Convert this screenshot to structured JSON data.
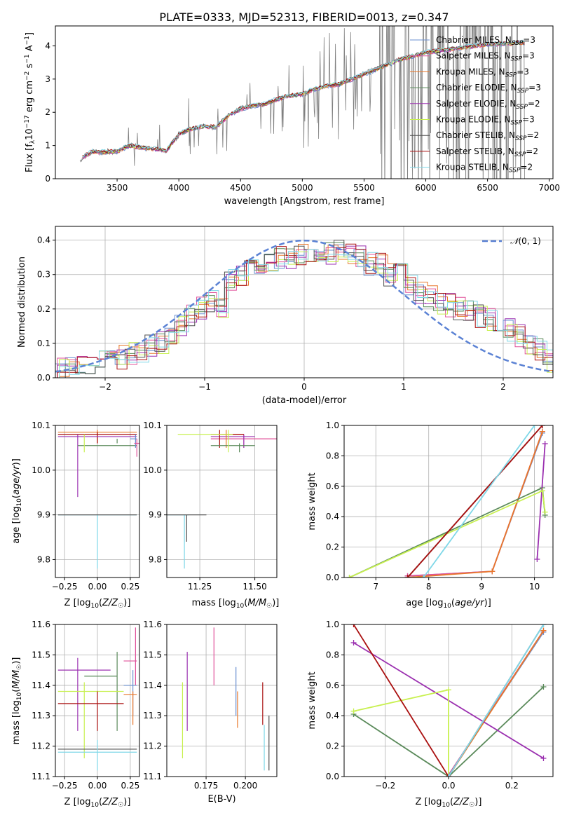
{
  "title": "PLATE=0333, MJD=52313, FIBERID=0013, z=0.347",
  "colors": {
    "Chabrier MILES": "#6a8fd0",
    "Salpeter MILES": "#e0529a",
    "Kroupa MILES": "#e8772a",
    "Chabrier ELODIE": "#5a8a5a",
    "Salpeter ELODIE": "#9b30b0",
    "Kroupa ELODIE": "#c8f050",
    "Chabrier STELIB": "#505050",
    "Salpeter STELIB": "#aa1010",
    "Kroupa STELIB": "#80d8e8",
    "observed": "#808080",
    "normal": "#5b82d4"
  },
  "legend_top": [
    {
      "name": "Chabrier MILES",
      "pre": "Chabrier MILES, N",
      "sub": "SSP",
      "post": "=3"
    },
    {
      "name": "Salpeter MILES",
      "pre": "Salpeter MILES, N",
      "sub": "SSP",
      "post": "=3"
    },
    {
      "name": "Kroupa MILES",
      "pre": "Kroupa MILES, N",
      "sub": "SSP",
      "post": "=3"
    },
    {
      "name": "Chabrier ELODIE",
      "pre": "Chabrier ELODIE, N",
      "sub": "SSP",
      "post": "=3"
    },
    {
      "name": "Salpeter ELODIE",
      "pre": "Salpeter ELODIE, N",
      "sub": "SSP",
      "post": "=2"
    },
    {
      "name": "Kroupa ELODIE",
      "pre": "Kroupa ELODIE, N",
      "sub": "SSP",
      "post": "=3"
    },
    {
      "name": "Chabrier STELIB",
      "pre": "Chabrier STELIB, N",
      "sub": "SSP",
      "post": "=2"
    },
    {
      "name": "Salpeter STELIB",
      "pre": "Salpeter STELIB, N",
      "sub": "SSP",
      "post": "=2"
    },
    {
      "name": "Kroupa STELIB",
      "pre": "Kroupa STELIB, N",
      "sub": "SSP",
      "post": "=2"
    }
  ],
  "chart_data": [
    {
      "id": "spectrum",
      "type": "line",
      "xlabel": "wavelength [Angstrom, rest frame]",
      "ylabel": "Flux [f_λ 10^-17 erg cm^-2 s^-1 A^-1]",
      "xlim": [
        3000,
        7030
      ],
      "ylim": [
        0,
        4.6
      ],
      "xticks": [
        3500,
        4000,
        4500,
        5000,
        5500,
        6000,
        6500,
        7000
      ],
      "yticks": [
        0,
        1,
        2,
        3,
        4
      ],
      "grid": false,
      "legend_position": "top-right",
      "x": [
        3200,
        3300,
        3400,
        3500,
        3600,
        3700,
        3800,
        3900,
        4000,
        4100,
        4200,
        4300,
        4400,
        4500,
        4600,
        4700,
        4800,
        4900,
        5000,
        5100,
        5200,
        5300,
        5400,
        5500,
        5600,
        5700,
        5800,
        5900,
        6000,
        6100,
        6200,
        6300,
        6400,
        6500,
        6600,
        6700,
        6800
      ],
      "series": [
        {
          "name": "observed",
          "values": [
            0.55,
            0.8,
            0.78,
            0.8,
            1.05,
            0.95,
            0.9,
            0.85,
            1.3,
            1.5,
            1.6,
            1.5,
            1.9,
            2.15,
            2.2,
            2.25,
            2.4,
            2.5,
            2.5,
            2.7,
            2.8,
            2.85,
            3.0,
            3.2,
            3.3,
            3.5,
            3.6,
            3.7,
            3.8,
            3.85,
            3.9,
            3.95,
            4.0,
            4.05,
            4.05,
            4.1,
            4.1
          ]
        },
        {
          "name": "model",
          "values": [
            0.6,
            0.82,
            0.8,
            0.82,
            1.0,
            0.93,
            0.9,
            0.85,
            1.35,
            1.5,
            1.58,
            1.55,
            1.9,
            2.1,
            2.2,
            2.25,
            2.4,
            2.5,
            2.55,
            2.7,
            2.8,
            2.85,
            3.0,
            3.15,
            3.3,
            3.45,
            3.6,
            3.7,
            3.8,
            3.85,
            3.9,
            3.95,
            4.0,
            4.05,
            4.05,
            4.08,
            4.1
          ]
        }
      ]
    },
    {
      "id": "residuals",
      "type": "histogram",
      "xlabel": "(data-model)/error",
      "ylabel": "Normed distribution",
      "xlim": [
        -2.5,
        2.5
      ],
      "ylim": [
        0,
        0.44
      ],
      "xticks": [
        -2,
        -1,
        0,
        1,
        2
      ],
      "yticks": [
        0.0,
        0.1,
        0.2,
        0.3,
        0.4
      ],
      "grid": true,
      "legend_position": "top-right",
      "legend": "N(0,1)",
      "bin_width": 0.1,
      "bin_start": -2.5,
      "values": [
        0.03,
        0.03,
        0.03,
        0.04,
        0.05,
        0.06,
        0.06,
        0.07,
        0.08,
        0.09,
        0.1,
        0.12,
        0.15,
        0.18,
        0.2,
        0.22,
        0.2,
        0.28,
        0.3,
        0.31,
        0.33,
        0.34,
        0.35,
        0.35,
        0.36,
        0.37,
        0.36,
        0.36,
        0.37,
        0.36,
        0.35,
        0.33,
        0.33,
        0.3,
        0.3,
        0.27,
        0.25,
        0.24,
        0.22,
        0.21,
        0.2,
        0.19,
        0.18,
        0.17,
        0.15,
        0.14,
        0.12,
        0.1,
        0.08,
        0.05
      ]
    },
    {
      "id": "age_vs_Z",
      "type": "errorbar",
      "xlabel": "Z [log10(Z/Z☉)]",
      "ylabel": "age [log10(age/yr)]",
      "xlim": [
        -0.32,
        0.32
      ],
      "ylim": [
        9.76,
        10.1
      ],
      "xticks": [
        -0.25,
        0.0,
        0.25
      ],
      "yticks": [
        9.8,
        9.9,
        10.0,
        10.1
      ],
      "points": [
        {
          "model": "Kroupa MILES",
          "x": 0.0,
          "xl": -0.3,
          "xh": 0.3,
          "y": 10.085,
          "yl": 10.06,
          "yh": 10.09
        },
        {
          "model": "Salpeter STELIB",
          "x": 0.0,
          "xl": -0.3,
          "xh": 0.3,
          "y": 10.08,
          "yl": 10.06,
          "yh": 10.085
        },
        {
          "model": "Salpeter ELODIE",
          "x": -0.15,
          "xl": -0.3,
          "xh": 0.3,
          "y": 10.075,
          "yl": 9.94,
          "yh": 10.08
        },
        {
          "model": "Chabrier ELODIE",
          "x": 0.15,
          "xl": -0.15,
          "xh": 0.3,
          "y": 10.055,
          "yl": 10.07,
          "yh": 10.06
        },
        {
          "model": "Kroupa ELODIE",
          "x": -0.1,
          "xl": -0.1,
          "xh": -0.1,
          "y": 10.06,
          "yl": 10.04,
          "yh": 10.08
        },
        {
          "model": "Kroupa STELIB",
          "x": 0.0,
          "xl": -0.3,
          "xh": 0.3,
          "y": 9.9,
          "yl": 9.78,
          "yh": 9.9
        },
        {
          "model": "Chabrier STELIB",
          "x": 0.0,
          "xl": -0.3,
          "xh": 0.3,
          "y": 9.9,
          "yl": 9.9,
          "yh": 9.9
        },
        {
          "model": "Chabrier MILES",
          "x": 0.29,
          "xl": 0.25,
          "xh": 0.3,
          "y": 10.07,
          "yl": 10.05,
          "yh": 10.08
        },
        {
          "model": "Salpeter MILES",
          "x": 0.3,
          "xl": 0.28,
          "xh": 0.32,
          "y": 10.06,
          "yl": 10.03,
          "yh": 10.07
        }
      ]
    },
    {
      "id": "age_vs_mass",
      "type": "errorbar",
      "xlabel": "mass [log10(M/M☉)]",
      "ylabel": "",
      "xlim": [
        11.1,
        11.6
      ],
      "ylim": [
        9.76,
        10.1
      ],
      "xticks": [
        11.25,
        11.5
      ],
      "yticks": [
        9.8,
        9.9,
        10.0,
        10.1
      ],
      "points": [
        {
          "model": "Salpeter MILES",
          "x": 11.45,
          "xl": 11.3,
          "xh": 11.6,
          "y": 10.07,
          "yl": 10.05,
          "yh": 10.08
        },
        {
          "model": "Salpeter ELODIE",
          "x": 11.45,
          "xl": 11.3,
          "xh": 11.5,
          "y": 10.075,
          "yl": 10.05,
          "yh": 10.08
        },
        {
          "model": "Kroupa MILES",
          "x": 11.37,
          "xl": 11.35,
          "xh": 11.45,
          "y": 10.08,
          "yl": 10.05,
          "yh": 10.09
        },
        {
          "model": "Salpeter STELIB",
          "x": 11.34,
          "xl": 11.3,
          "xh": 11.45,
          "y": 10.08,
          "yl": 10.05,
          "yh": 10.09
        },
        {
          "model": "Chabrier ELODIE",
          "x": 11.43,
          "xl": 11.3,
          "xh": 11.5,
          "y": 10.055,
          "yl": 10.04,
          "yh": 10.06
        },
        {
          "model": "Kroupa ELODIE",
          "x": 11.38,
          "xl": 11.15,
          "xh": 11.4,
          "y": 10.08,
          "yl": 10.04,
          "yh": 10.09
        },
        {
          "model": "Kroupa STELIB",
          "x": 11.18,
          "xl": 11.1,
          "xh": 11.2,
          "y": 9.9,
          "yl": 9.78,
          "yh": 9.9
        },
        {
          "model": "Chabrier STELIB",
          "x": 11.19,
          "xl": 11.1,
          "xh": 11.28,
          "y": 9.9,
          "yl": 9.84,
          "yh": 9.9
        }
      ]
    },
    {
      "id": "weight_vs_age",
      "type": "line",
      "xlabel": "age [log10(age/yr)]",
      "ylabel": "mass weight",
      "xlim": [
        6.4,
        10.35
      ],
      "ylim": [
        0,
        1
      ],
      "xticks": [
        7,
        8,
        9,
        10
      ],
      "yticks": [
        0.0,
        0.2,
        0.4,
        0.6,
        0.8,
        1.0
      ],
      "grid": true,
      "series": [
        {
          "name": "Chabrier MILES",
          "x": [
            7.6,
            9.2,
            10.15
          ],
          "y": [
            0.01,
            0.04,
            0.95
          ]
        },
        {
          "name": "Salpeter MILES",
          "x": [
            7.6,
            9.2,
            10.15
          ],
          "y": [
            0.01,
            0.04,
            0.96
          ]
        },
        {
          "name": "Kroupa MILES",
          "x": [
            7.6,
            9.2,
            10.15
          ],
          "y": [
            0.0,
            0.04,
            0.96
          ]
        },
        {
          "name": "Chabrier ELODIE",
          "x": [
            6.5,
            10.15,
            10.2
          ],
          "y": [
            0.0,
            0.59,
            0.41
          ]
        },
        {
          "name": "Salpeter ELODIE",
          "x": [
            10.05,
            10.2
          ],
          "y": [
            0.12,
            0.88
          ]
        },
        {
          "name": "Kroupa ELODIE",
          "x": [
            6.5,
            10.15,
            10.2
          ],
          "y": [
            0.0,
            0.57,
            0.43
          ]
        },
        {
          "name": "Chabrier STELIB",
          "x": [
            7.6,
            10.15
          ],
          "y": [
            0.0,
            1.0
          ]
        },
        {
          "name": "Salpeter STELIB",
          "x": [
            7.6,
            10.15
          ],
          "y": [
            0.0,
            1.0
          ]
        },
        {
          "name": "Kroupa STELIB",
          "x": [
            7.9,
            10.0
          ],
          "y": [
            0.0,
            1.0
          ]
        }
      ]
    },
    {
      "id": "mass_vs_Z",
      "type": "errorbar",
      "xlabel": "Z [log10(Z/Z☉)]",
      "ylabel": "mass [log10(M/M☉)]",
      "xlim": [
        -0.32,
        0.32
      ],
      "ylim": [
        11.1,
        11.6
      ],
      "xticks": [
        -0.25,
        0.0,
        0.25
      ],
      "yticks": [
        11.1,
        11.2,
        11.3,
        11.4,
        11.5,
        11.6
      ],
      "points": [
        {
          "model": "Salpeter ELODIE",
          "x": -0.15,
          "xl": -0.3,
          "xh": 0.1,
          "y": 11.45,
          "yl": 11.25,
          "yh": 11.49
        },
        {
          "model": "Chabrier ELODIE",
          "x": 0.15,
          "xl": -0.1,
          "xh": 0.15,
          "y": 11.43,
          "yl": 11.25,
          "yh": 11.51
        },
        {
          "model": "Kroupa ELODIE",
          "x": -0.1,
          "xl": -0.3,
          "xh": 0.2,
          "y": 11.38,
          "yl": 11.16,
          "yh": 11.41
        },
        {
          "model": "Salpeter STELIB",
          "x": 0.0,
          "xl": -0.3,
          "xh": 0.2,
          "y": 11.34,
          "yl": 11.25,
          "yh": 11.38
        },
        {
          "model": "Chabrier STELIB",
          "x": 0.0,
          "xl": -0.3,
          "xh": 0.3,
          "y": 11.19,
          "yl": 11.19,
          "yh": 11.19
        },
        {
          "model": "Kroupa STELIB",
          "x": 0.0,
          "xl": -0.3,
          "xh": 0.3,
          "y": 11.18,
          "yl": 11.12,
          "yh": 11.22
        },
        {
          "model": "Salpeter MILES",
          "x": 0.29,
          "xl": 0.2,
          "xh": 0.3,
          "y": 11.48,
          "yl": 11.4,
          "yh": 11.59
        },
        {
          "model": "Chabrier MILES",
          "x": 0.27,
          "xl": 0.2,
          "xh": 0.3,
          "y": 11.4,
          "yl": 11.3,
          "yh": 11.45
        },
        {
          "model": "Kroupa MILES",
          "x": 0.27,
          "xl": 0.2,
          "xh": 0.3,
          "y": 11.37,
          "yl": 11.27,
          "yh": 11.38
        }
      ]
    },
    {
      "id": "mass_vs_EBV",
      "type": "errorbar",
      "xlabel": "E(B-V)",
      "ylabel": "",
      "xlim": [
        0.15,
        0.22
      ],
      "ylim": [
        11.1,
        11.6
      ],
      "xticks": [
        0.175,
        0.2
      ],
      "yticks": [
        11.1,
        11.2,
        11.3,
        11.4,
        11.5,
        11.6
      ],
      "points": [
        {
          "model": "Kroupa ELODIE",
          "x": 0.16,
          "xl": 0.16,
          "xh": 0.16,
          "y": 11.3,
          "yl": 11.16,
          "yh": 11.41
        },
        {
          "model": "Salpeter ELODIE",
          "x": 0.163,
          "xl": 0.163,
          "xh": 0.163,
          "y": 11.4,
          "yl": 11.25,
          "yh": 11.51
        },
        {
          "model": "Salpeter MILES",
          "x": 0.18,
          "xl": 0.18,
          "xh": 0.18,
          "y": 11.5,
          "yl": 11.4,
          "yh": 11.59
        },
        {
          "model": "Chabrier MILES",
          "x": 0.194,
          "xl": 0.194,
          "xh": 0.194,
          "y": 11.4,
          "yl": 11.3,
          "yh": 11.46
        },
        {
          "model": "Kroupa MILES",
          "x": 0.195,
          "xl": 0.195,
          "xh": 0.195,
          "y": 11.3,
          "yl": 11.26,
          "yh": 11.38
        },
        {
          "model": "Salpeter STELIB",
          "x": 0.211,
          "xl": 0.211,
          "xh": 0.211,
          "y": 11.34,
          "yl": 11.27,
          "yh": 11.41
        },
        {
          "model": "Kroupa STELIB",
          "x": 0.212,
          "xl": 0.212,
          "xh": 0.212,
          "y": 11.2,
          "yl": 11.12,
          "yh": 11.27
        },
        {
          "model": "Chabrier STELIB",
          "x": 0.215,
          "xl": 0.215,
          "xh": 0.215,
          "y": 11.2,
          "yl": 11.12,
          "yh": 11.3
        }
      ]
    },
    {
      "id": "weight_vs_Z",
      "type": "line",
      "xlabel": "Z [log10(Z/Z☉)]",
      "ylabel": "mass weight",
      "xlim": [
        -0.33,
        0.33
      ],
      "ylim": [
        0,
        1
      ],
      "xticks": [
        -0.2,
        0.0,
        0.2
      ],
      "yticks": [
        0.0,
        0.2,
        0.4,
        0.6,
        0.8,
        1.0
      ],
      "grid": true,
      "series": [
        {
          "name": "Chabrier MILES",
          "x": [
            0.0,
            0.3
          ],
          "y": [
            0.01,
            0.95
          ]
        },
        {
          "name": "Salpeter MILES",
          "x": [
            0.0,
            0.3
          ],
          "y": [
            0.01,
            0.96
          ]
        },
        {
          "name": "Kroupa MILES",
          "x": [
            0.0,
            0.3
          ],
          "y": [
            0.0,
            0.96
          ]
        },
        {
          "name": "Chabrier ELODIE",
          "x": [
            -0.3,
            0.0,
            0.3
          ],
          "y": [
            0.41,
            0.0,
            0.59
          ]
        },
        {
          "name": "Salpeter ELODIE",
          "x": [
            -0.3,
            0.3
          ],
          "y": [
            0.88,
            0.12
          ]
        },
        {
          "name": "Kroupa ELODIE",
          "x": [
            -0.3,
            0.0,
            0.0
          ],
          "y": [
            0.43,
            0.57,
            0.0
          ]
        },
        {
          "name": "Chabrier STELIB",
          "x": [
            0.0,
            0.3
          ],
          "y": [
            0.0,
            1.0
          ]
        },
        {
          "name": "Salpeter STELIB",
          "x": [
            -0.3,
            0.0
          ],
          "y": [
            1.0,
            0.0
          ]
        },
        {
          "name": "Kroupa STELIB",
          "x": [
            0.0,
            0.3
          ],
          "y": [
            0.0,
            1.0
          ]
        }
      ]
    }
  ]
}
